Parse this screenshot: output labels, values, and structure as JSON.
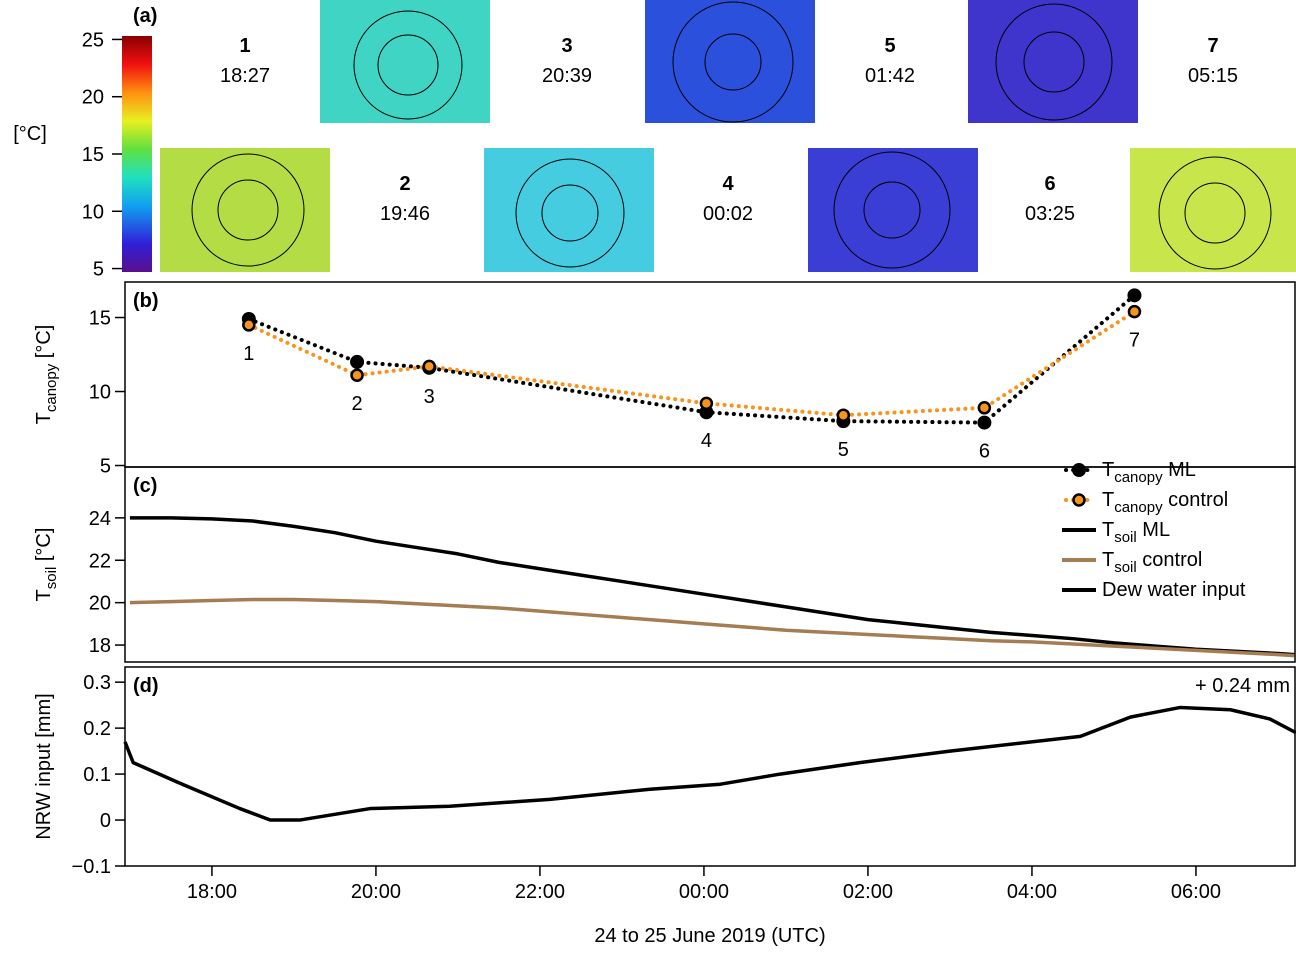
{
  "panel_a": {
    "panel_label": "(a)",
    "colorbar_label": "[°C]",
    "colorbar_lim": [
      4.7,
      25.3
    ],
    "colorbar_ticks": [
      5,
      10,
      15,
      20,
      25
    ],
    "images": [
      {
        "label": "1",
        "time": "18:27"
      },
      {
        "label": "2",
        "time": "19:46"
      },
      {
        "label": "3",
        "time": "20:39"
      },
      {
        "label": "4",
        "time": "00:02"
      },
      {
        "label": "5",
        "time": "01:42"
      },
      {
        "label": "6",
        "time": "03:25"
      },
      {
        "label": "7",
        "time": "05:15"
      }
    ]
  },
  "xlabel": "24 to 25 June 2019 (UTC)",
  "annotation": "+ 0.24 mm",
  "chart_data": [
    {
      "type": "line",
      "panel_label": "(b)",
      "ylabel": [
        "T",
        "canopy",
        " [°C]"
      ],
      "xlim": [
        16.94,
        31.22
      ],
      "ylim": [
        4.9,
        17.4
      ],
      "yticks": [
        5,
        10,
        15
      ],
      "x": [
        18.45,
        19.77,
        20.65,
        24.03,
        25.7,
        27.42,
        29.25
      ],
      "point_labels": [
        "1",
        "2",
        "3",
        "4",
        "5",
        "6",
        "7"
      ],
      "markers": true,
      "series": [
        {
          "name": [
            "T",
            "canopy",
            " ML"
          ],
          "color": "#000000",
          "values": [
            14.9,
            12.0,
            11.6,
            8.6,
            8.0,
            7.9,
            16.5
          ]
        },
        {
          "name": [
            "T",
            "canopy",
            " control"
          ],
          "color": "#f7941d",
          "values": [
            14.5,
            11.1,
            11.7,
            9.2,
            8.4,
            8.9,
            15.4
          ]
        }
      ]
    },
    {
      "type": "line",
      "panel_label": "(c)",
      "ylabel": [
        "T",
        "soil",
        " [°C]"
      ],
      "xlim": [
        16.94,
        31.22
      ],
      "ylim": [
        17.2,
        26.4
      ],
      "yticks": [
        18,
        20,
        22,
        24
      ],
      "x": [
        17,
        17.5,
        18,
        18.5,
        19,
        19.5,
        20,
        20.5,
        21,
        21.5,
        22,
        22.5,
        23,
        23.5,
        24,
        24.5,
        25,
        25.5,
        26,
        26.5,
        27,
        27.5,
        28,
        28.5,
        29,
        29.5,
        30,
        30.5,
        31,
        31.2
      ],
      "series": [
        {
          "name": [
            "T",
            "soil",
            " ML"
          ],
          "color": "#000000",
          "values": [
            24.0,
            24.0,
            23.95,
            23.85,
            23.6,
            23.3,
            22.9,
            22.6,
            22.3,
            21.9,
            21.6,
            21.3,
            21.0,
            20.7,
            20.4,
            20.1,
            19.8,
            19.5,
            19.2,
            19.0,
            18.8,
            18.6,
            18.45,
            18.3,
            18.1,
            17.95,
            17.8,
            17.7,
            17.6,
            17.55
          ]
        },
        {
          "name": [
            "T",
            "soil",
            " control"
          ],
          "color": "#a67c52",
          "values": [
            20.0,
            20.05,
            20.1,
            20.15,
            20.15,
            20.1,
            20.05,
            19.95,
            19.85,
            19.75,
            19.6,
            19.45,
            19.3,
            19.15,
            19.0,
            18.85,
            18.7,
            18.6,
            18.5,
            18.4,
            18.3,
            18.2,
            18.15,
            18.05,
            17.95,
            17.85,
            17.75,
            17.65,
            17.55,
            17.5
          ]
        }
      ]
    },
    {
      "type": "line",
      "panel_label": "(d)",
      "ylabel": [
        "NRW input [mm]"
      ],
      "xlim": [
        16.94,
        31.22
      ],
      "ylim": [
        -0.1,
        0.333
      ],
      "yticks": [
        {
          "value": -0.1,
          "label": "−0.1"
        },
        0,
        0.1,
        0.2,
        0.3
      ],
      "xticks": [
        {
          "value": 18,
          "label": "18:00"
        },
        {
          "value": 20,
          "label": "20:00"
        },
        {
          "value": 22,
          "label": "22:00"
        },
        {
          "value": 24,
          "label": "00:00"
        },
        {
          "value": 26,
          "label": "02:00"
        },
        {
          "value": 28,
          "label": "04:00"
        },
        {
          "value": 30,
          "label": "06:00"
        }
      ],
      "x": [
        16.94,
        17.04,
        17.61,
        18.34,
        18.71,
        19.07,
        19.93,
        20.9,
        22.12,
        23.34,
        24.2,
        24.93,
        25.9,
        27.0,
        28.59,
        29.2,
        29.81,
        30.42,
        30.9,
        31.22
      ],
      "series": [
        {
          "name": [
            "Dew water input"
          ],
          "color": "#000000",
          "values": [
            0.17,
            0.125,
            0.08,
            0.025,
            0.0,
            0.0,
            0.025,
            0.03,
            0.045,
            0.067,
            0.078,
            0.1,
            0.125,
            0.15,
            0.182,
            0.224,
            0.245,
            0.24,
            0.22,
            0.19
          ]
        }
      ]
    }
  ]
}
